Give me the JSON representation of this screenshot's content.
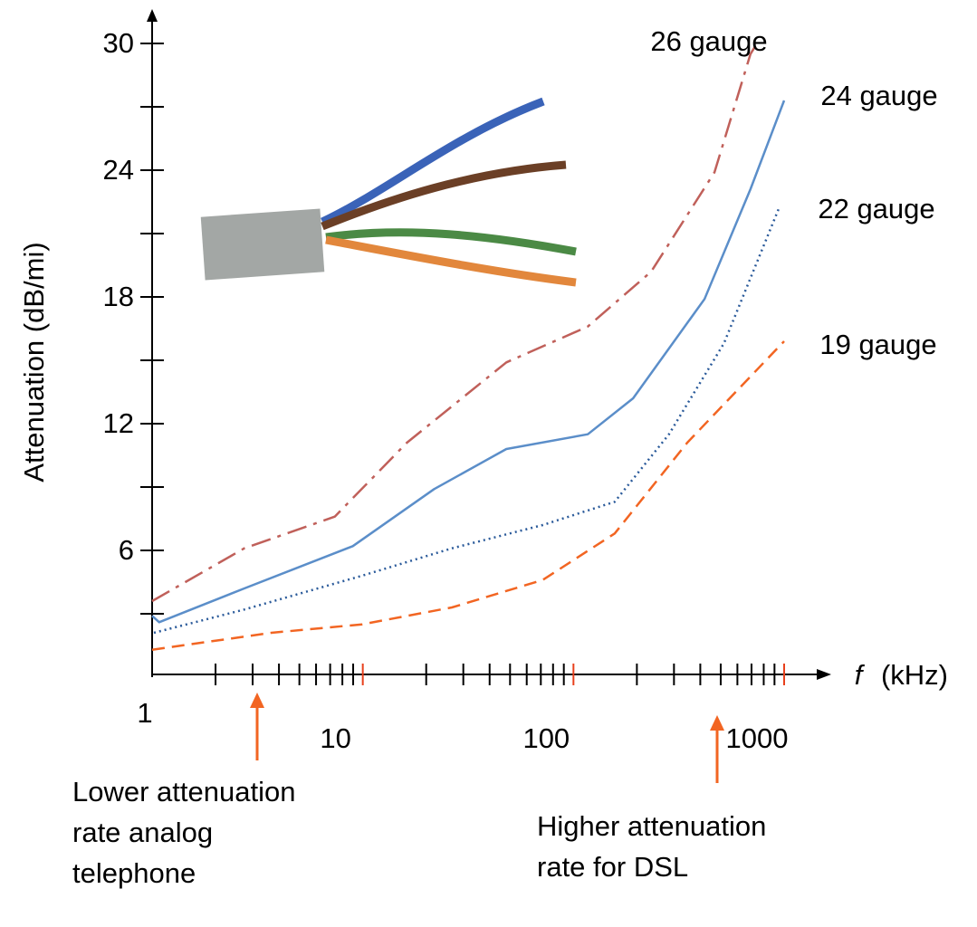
{
  "chart_data": {
    "type": "line",
    "y_label": "Attenuation (dB/mi)",
    "x_label": {
      "variable": "f",
      "unit": "(kHz)"
    },
    "x_scale": "log",
    "xlim": [
      1,
      1000
    ],
    "xticks": [
      1,
      10,
      100,
      1000
    ],
    "xminor_ticks": [
      2,
      3,
      4,
      5,
      6,
      7,
      8,
      9,
      20,
      30,
      40,
      50,
      60,
      70,
      80,
      90,
      200,
      300,
      400,
      500,
      600,
      700,
      800,
      900
    ],
    "ylim": [
      0,
      30
    ],
    "yticks": [
      6,
      12,
      18,
      24,
      30
    ],
    "yminor_ticks": [
      3,
      9,
      15,
      21,
      27
    ],
    "axis_color": "#000000",
    "decade_tick_color": "#e8401c",
    "series": [
      {
        "name": "26 gauge",
        "color": "#c0605a",
        "dash": "22 8 4 8",
        "x": [
          1,
          2.74,
          7.36,
          16.2,
          48,
          117,
          234,
          467,
          692,
          733
        ],
        "values": [
          3.6,
          6.1,
          7.6,
          11.1,
          14.9,
          16.6,
          19.2,
          23.9,
          29.5,
          29.9
        ]
      },
      {
        "name": "24 gauge",
        "color": "#5b8ec9",
        "dash": "",
        "x": [
          1,
          1.08,
          2.74,
          8.96,
          21.8,
          48,
          117,
          192,
          419,
          692,
          1000
        ],
        "values": [
          2.9,
          2.6,
          4.2,
          6.2,
          8.9,
          10.8,
          11.5,
          13.2,
          17.9,
          23.1,
          27.3
        ]
      },
      {
        "name": "22 gauge",
        "color": "#2a5a9a",
        "dash": "2 4",
        "x": [
          1.02,
          2.74,
          9.9,
          26.5,
          71.4,
          157,
          284,
          518,
          954
        ],
        "values": [
          2.1,
          3.2,
          4.8,
          6.1,
          7.2,
          8.3,
          11.5,
          15.8,
          22.3
        ]
      },
      {
        "name": "19 gauge",
        "color": "#f26522",
        "dash": "14 8",
        "x": [
          1,
          3.68,
          9.9,
          26.5,
          71.4,
          157,
          347,
          1000
        ],
        "values": [
          1.3,
          2.1,
          2.5,
          3.3,
          4.6,
          6.8,
          11.1,
          15.9
        ]
      }
    ],
    "annotations": [
      {
        "lines": [
          "Lower attenuation",
          "rate analog",
          "telephone"
        ]
      },
      {
        "lines": [
          "Higher attenuation",
          "rate for DSL"
        ]
      }
    ]
  }
}
